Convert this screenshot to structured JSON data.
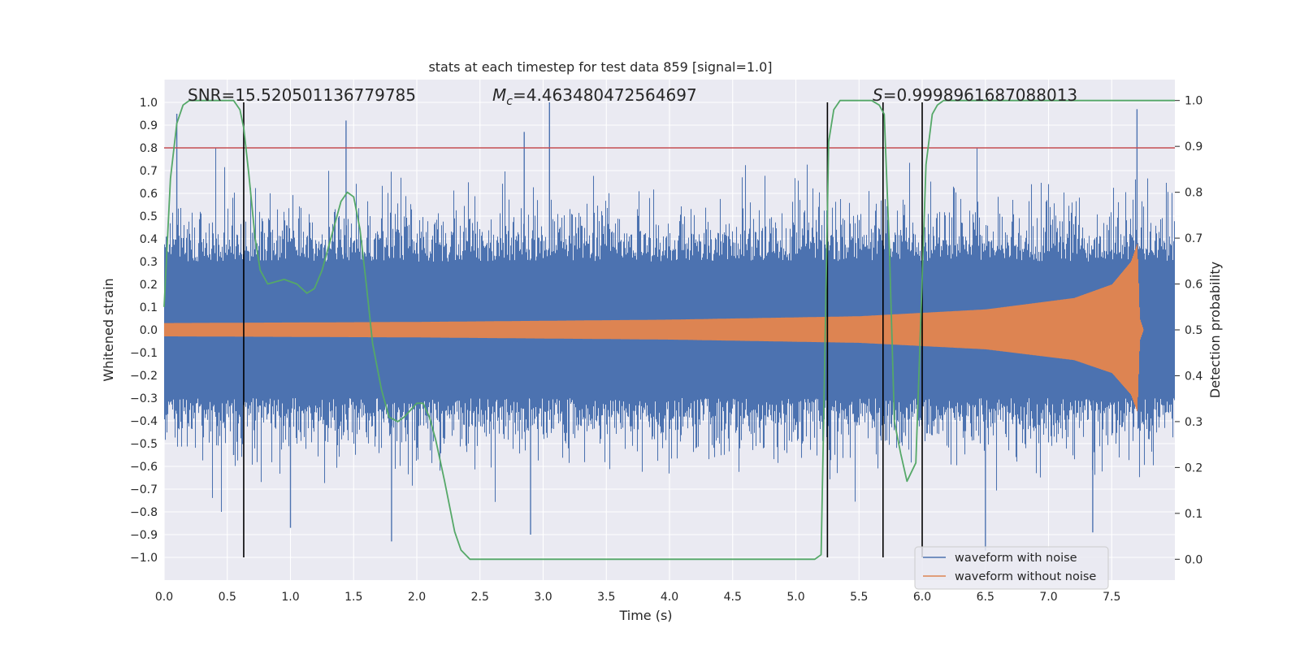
{
  "chart_data": {
    "type": "line",
    "title": "stats at each timestep for test data 859 [signal=1.0]",
    "xlabel": "Time (s)",
    "ylabel": "Whitened strain",
    "ylabel_right": "Detection probability",
    "xlim": [
      0.0,
      8.0
    ],
    "ylim": [
      -1.1,
      1.1
    ],
    "ylim_right": [
      -0.0455,
      1.0455
    ],
    "xticks": [
      0.0,
      0.5,
      1.0,
      1.5,
      2.0,
      2.5,
      3.0,
      3.5,
      4.0,
      4.5,
      5.0,
      5.5,
      6.0,
      6.5,
      7.0,
      7.5
    ],
    "xtick_labels": [
      "0.0",
      "0.5",
      "1.0",
      "1.5",
      "2.0",
      "2.5",
      "3.0",
      "3.5",
      "4.0",
      "4.5",
      "5.0",
      "5.5",
      "6.0",
      "6.5",
      "7.0",
      "7.5"
    ],
    "yticks": [
      1.0,
      0.9,
      0.8,
      0.7,
      0.6,
      0.5,
      0.4,
      0.3,
      0.2,
      0.1,
      0.0,
      -0.1,
      -0.2,
      -0.3,
      -0.4,
      -0.5,
      -0.6,
      -0.7,
      -0.8,
      -0.9,
      -1.0
    ],
    "ytick_labels": [
      "1.0",
      "0.9",
      "0.8",
      "0.7",
      "0.6",
      "0.5",
      "0.4",
      "0.3",
      "0.2",
      "0.1",
      "0.0",
      "−0.1",
      "−0.2",
      "−0.3",
      "−0.4",
      "−0.5",
      "−0.6",
      "−0.7",
      "−0.8",
      "−0.9",
      "−1.0"
    ],
    "yticks_right": [
      1.0,
      0.9,
      0.8,
      0.7,
      0.6,
      0.5,
      0.4,
      0.3,
      0.2,
      0.1,
      0.0
    ],
    "ytick_labels_right": [
      "1.0",
      "0.9",
      "0.8",
      "0.7",
      "0.6",
      "0.5",
      "0.4",
      "0.3",
      "0.2",
      "0.1",
      "0.0"
    ],
    "annotations": {
      "snr": "SNR=15.520501136779785",
      "mc_symbol": "M",
      "mc_sub": "c",
      "mc_value": "=4.463480472564697",
      "s_symbol": "S",
      "s_value": "=0.9998961687088013"
    },
    "threshold": {
      "y": 0.8,
      "color": "#c44e52"
    },
    "vertical_lines": [
      0.63,
      5.25,
      5.69,
      6.0
    ],
    "vertical_lines_range": [
      -1.0,
      1.0
    ],
    "series": [
      {
        "name": "waveform with noise",
        "color": "#4c72b0",
        "note": "dense noisy strain; envelope approx ±0.45 with spikes",
        "peaks": [
          [
            0.1,
            0.95
          ],
          [
            1.44,
            0.92
          ],
          [
            3.05,
            1.0
          ],
          [
            2.85,
            0.87
          ],
          [
            7.7,
            0.97
          ],
          [
            0.55,
            -0.55
          ],
          [
            1.0,
            -0.87
          ],
          [
            2.9,
            -0.9
          ],
          [
            6.5,
            -0.97
          ],
          [
            7.35,
            -0.89
          ],
          [
            1.8,
            -0.93
          ]
        ]
      },
      {
        "name": "waveform without noise",
        "color": "#dd8452",
        "note": "chirp signal, amplitude grows toward merger near t=7.7 s",
        "amplitude_points": [
          [
            0.0,
            0.03
          ],
          [
            2.0,
            0.035
          ],
          [
            4.0,
            0.045
          ],
          [
            5.5,
            0.06
          ],
          [
            6.5,
            0.09
          ],
          [
            7.2,
            0.14
          ],
          [
            7.5,
            0.2
          ],
          [
            7.65,
            0.3
          ],
          [
            7.7,
            0.38
          ],
          [
            7.72,
            0.05
          ],
          [
            7.75,
            0.0
          ]
        ]
      },
      {
        "name": "detection probability",
        "color": "#55a868",
        "axis": "right",
        "points": [
          [
            0.0,
            0.55
          ],
          [
            0.05,
            0.83
          ],
          [
            0.1,
            0.95
          ],
          [
            0.15,
            0.99
          ],
          [
            0.2,
            1.0
          ],
          [
            0.3,
            1.0
          ],
          [
            0.4,
            1.0
          ],
          [
            0.5,
            1.0
          ],
          [
            0.55,
            1.0
          ],
          [
            0.6,
            0.98
          ],
          [
            0.63,
            0.94
          ],
          [
            0.67,
            0.84
          ],
          [
            0.72,
            0.7
          ],
          [
            0.76,
            0.63
          ],
          [
            0.82,
            0.6
          ],
          [
            0.95,
            0.61
          ],
          [
            1.05,
            0.6
          ],
          [
            1.13,
            0.58
          ],
          [
            1.19,
            0.59
          ],
          [
            1.25,
            0.63
          ],
          [
            1.32,
            0.7
          ],
          [
            1.4,
            0.78
          ],
          [
            1.45,
            0.8
          ],
          [
            1.5,
            0.79
          ],
          [
            1.55,
            0.72
          ],
          [
            1.6,
            0.6
          ],
          [
            1.65,
            0.47
          ],
          [
            1.72,
            0.37
          ],
          [
            1.78,
            0.31
          ],
          [
            1.85,
            0.3
          ],
          [
            1.9,
            0.31
          ],
          [
            2.0,
            0.34
          ],
          [
            2.05,
            0.34
          ],
          [
            2.1,
            0.31
          ],
          [
            2.15,
            0.26
          ],
          [
            2.22,
            0.17
          ],
          [
            2.3,
            0.06
          ],
          [
            2.35,
            0.02
          ],
          [
            2.42,
            0.0
          ],
          [
            3.0,
            0.0
          ],
          [
            4.0,
            0.0
          ],
          [
            5.0,
            0.0
          ],
          [
            5.15,
            0.0
          ],
          [
            5.2,
            0.01
          ],
          [
            5.22,
            0.3
          ],
          [
            5.26,
            0.91
          ],
          [
            5.3,
            0.98
          ],
          [
            5.35,
            1.0
          ],
          [
            5.6,
            1.0
          ],
          [
            5.66,
            0.99
          ],
          [
            5.7,
            0.97
          ],
          [
            5.74,
            0.68
          ],
          [
            5.78,
            0.3
          ],
          [
            5.83,
            0.23
          ],
          [
            5.88,
            0.17
          ],
          [
            5.95,
            0.21
          ],
          [
            5.98,
            0.45
          ],
          [
            6.03,
            0.86
          ],
          [
            6.08,
            0.97
          ],
          [
            6.12,
            0.99
          ],
          [
            6.17,
            1.0
          ],
          [
            6.5,
            1.0
          ],
          [
            7.0,
            1.0
          ],
          [
            7.5,
            1.0
          ],
          [
            8.0,
            1.0
          ]
        ]
      }
    ],
    "legend": {
      "placement": "lower-right",
      "entries": [
        {
          "label": "waveform with noise",
          "color": "#4c72b0"
        },
        {
          "label": "waveform without noise",
          "color": "#dd8452"
        }
      ]
    },
    "style": {
      "background": "#eaeaf2",
      "grid": "#ffffff",
      "vline_color": "#000000"
    }
  }
}
